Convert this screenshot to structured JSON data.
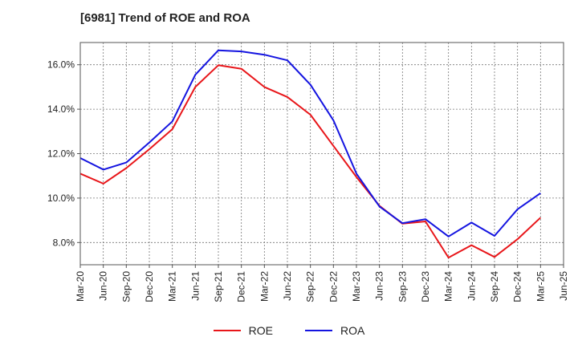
{
  "chart_data": {
    "type": "line",
    "title": "[6981]  Trend of ROE and ROA",
    "xlabel": "",
    "ylabel": "",
    "categories": [
      "Mar-20",
      "Jun-20",
      "Sep-20",
      "Dec-20",
      "Mar-21",
      "Jun-21",
      "Sep-21",
      "Dec-21",
      "Mar-22",
      "Jun-22",
      "Sep-22",
      "Dec-22",
      "Mar-23",
      "Jun-23",
      "Sep-23",
      "Dec-23",
      "Mar-24",
      "Jun-24",
      "Sep-24",
      "Dec-24",
      "Mar-25",
      "Jun-25"
    ],
    "y_ticks": [
      8.0,
      10.0,
      12.0,
      14.0,
      16.0
    ],
    "y_tick_labels": [
      "8.0%",
      "10.0%",
      "12.0%",
      "14.0%",
      "16.0%"
    ],
    "ylim": [
      7.0,
      17.0
    ],
    "grid": true,
    "legend_position": "bottom",
    "series": [
      {
        "name": "ROE",
        "color": "#e8161a",
        "values": [
          11.1,
          10.65,
          11.35,
          12.2,
          13.1,
          15.0,
          15.98,
          15.82,
          15.0,
          14.55,
          13.75,
          12.35,
          10.95,
          9.65,
          8.85,
          8.95,
          7.32,
          7.88,
          7.35,
          8.15,
          9.12,
          null
        ]
      },
      {
        "name": "ROA",
        "color": "#1414e0",
        "values": [
          11.8,
          11.28,
          11.6,
          12.5,
          13.45,
          15.55,
          16.65,
          16.6,
          16.45,
          16.2,
          15.1,
          13.5,
          11.1,
          9.62,
          8.87,
          9.05,
          8.27,
          8.9,
          8.3,
          9.5,
          10.22,
          null
        ]
      }
    ]
  },
  "colors": {
    "grid": "#777777",
    "axis": "#555555",
    "text": "#222222",
    "background": "#ffffff"
  }
}
